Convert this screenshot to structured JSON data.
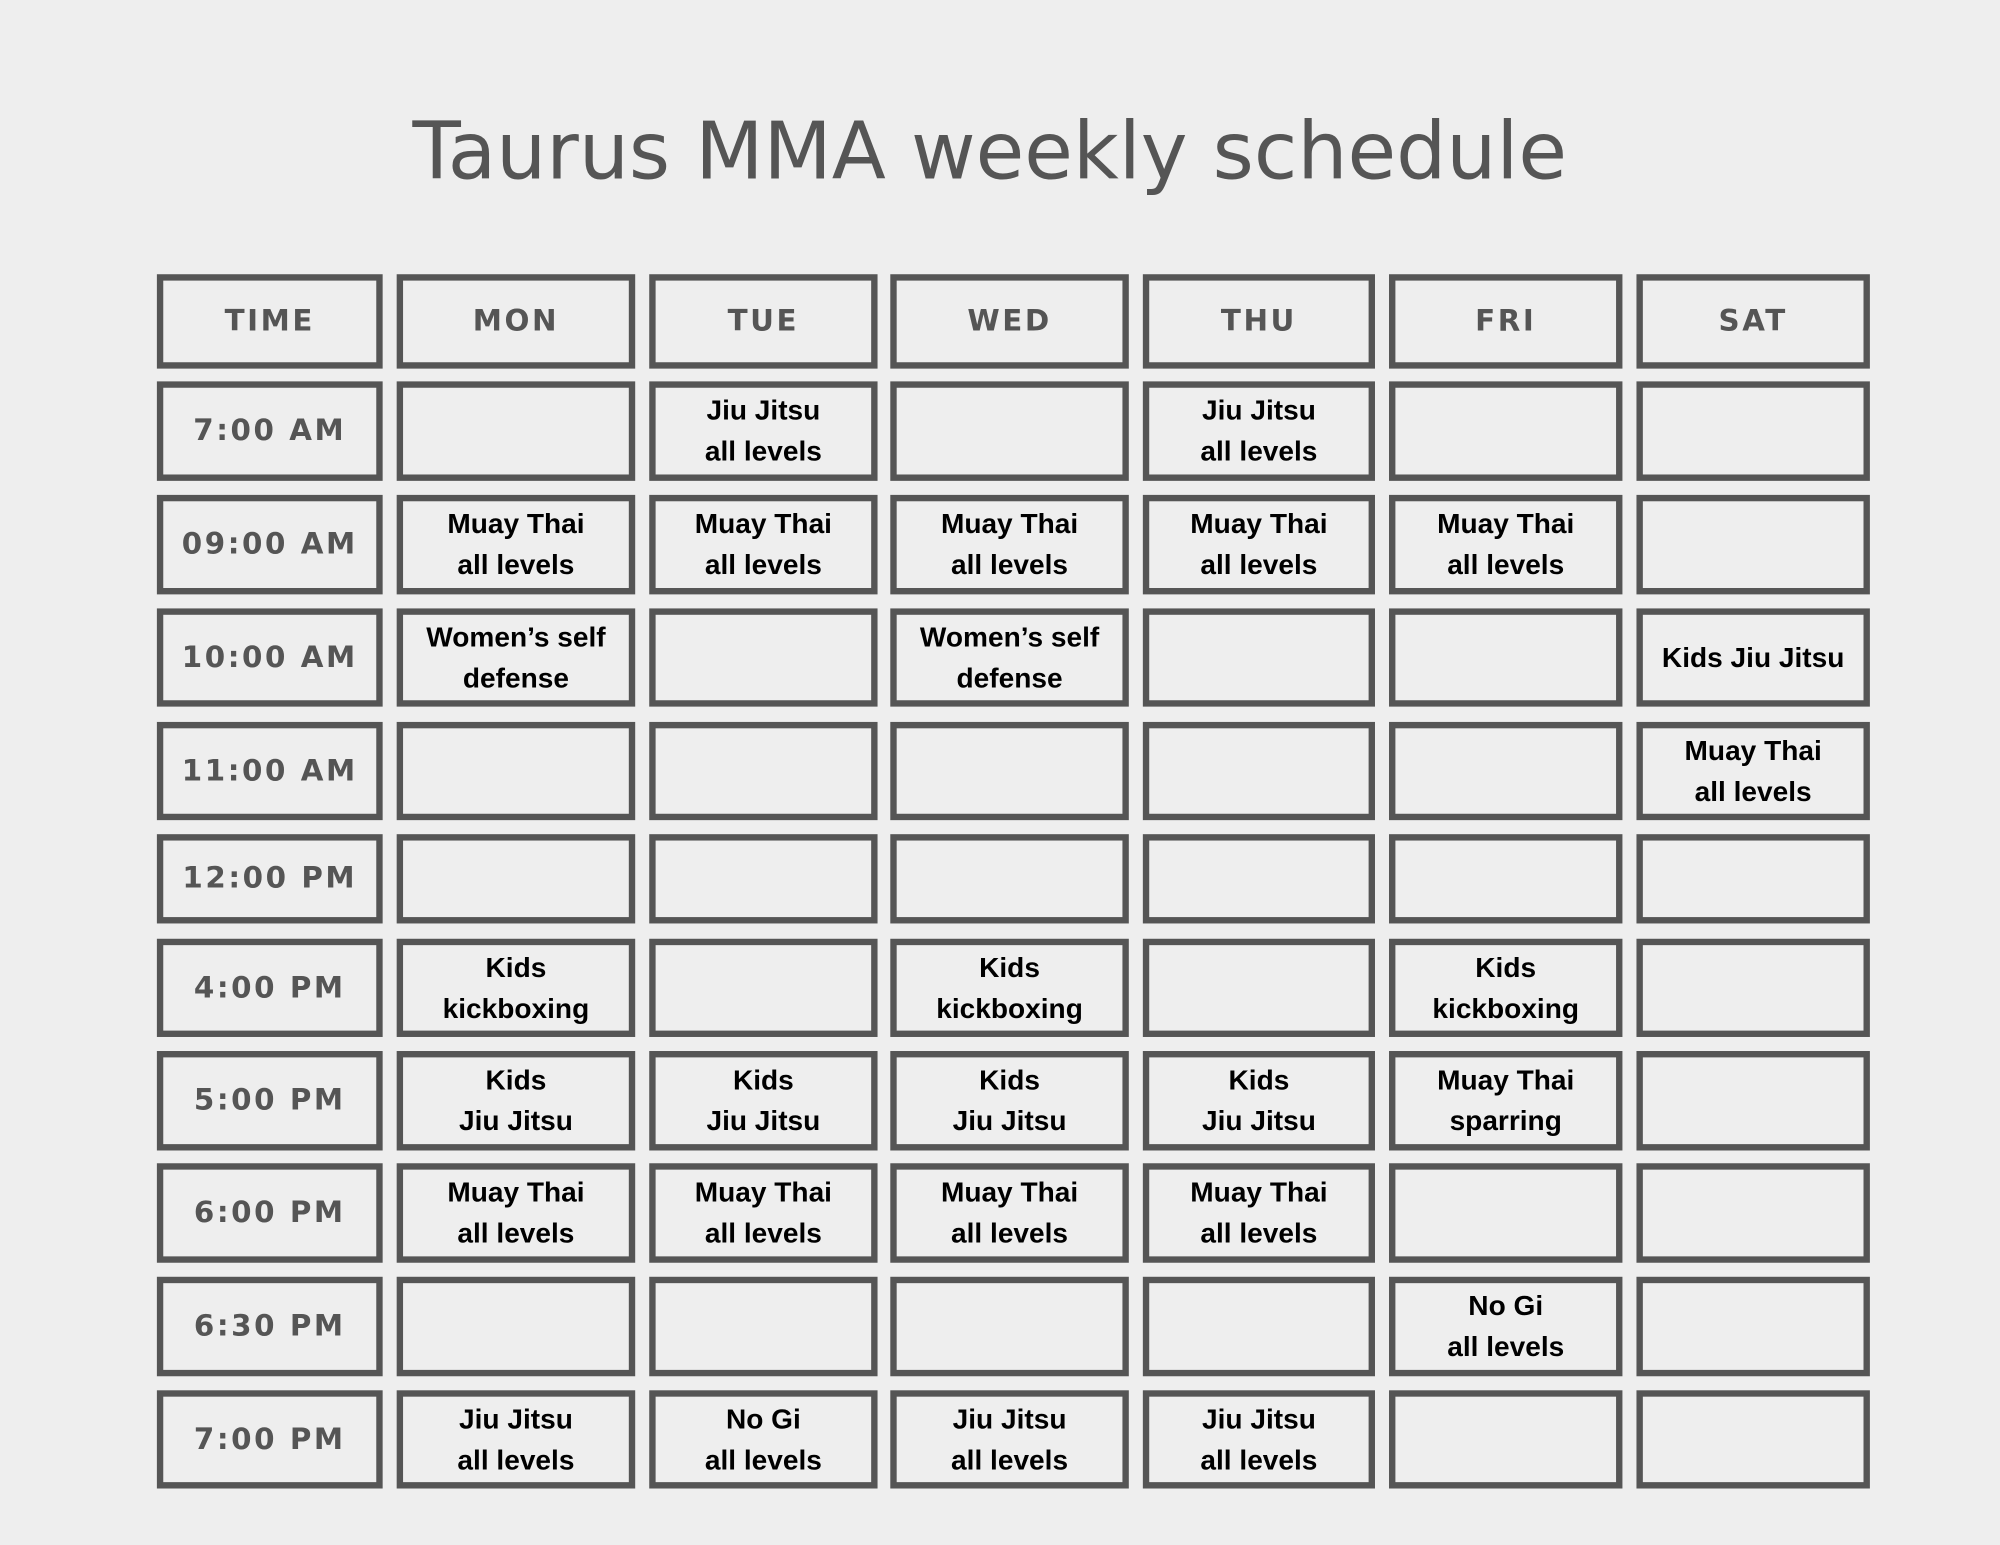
{
  "title": "Taurus MMA weekly schedule",
  "headers": [
    "TIME",
    "MON",
    "TUE",
    "WED",
    "THU",
    "FRI",
    "SAT"
  ],
  "rows": [
    {
      "time": "7:00 AM",
      "classes": [
        "",
        "Jiu Jitsu\nall levels",
        "",
        "Jiu Jitsu\nall levels",
        "",
        ""
      ]
    },
    {
      "time": "09:00 AM",
      "classes": [
        "Muay Thai\nall levels",
        "Muay Thai\nall levels",
        "Muay Thai\nall levels",
        "Muay Thai\nall levels",
        "Muay Thai\nall levels",
        ""
      ]
    },
    {
      "time": "10:00 AM",
      "classes": [
        "Women’s self\ndefense",
        "",
        "Women’s self\ndefense",
        "",
        "",
        "Kids Jiu Jitsu"
      ]
    },
    {
      "time": "11:00 AM",
      "classes": [
        "",
        "",
        "",
        "",
        "",
        "Muay Thai\nall levels"
      ]
    },
    {
      "time": "12:00 PM",
      "classes": [
        "",
        "",
        "",
        "",
        "",
        ""
      ]
    },
    {
      "time": "4:00 PM",
      "classes": [
        "Kids\nkickboxing",
        "",
        "Kids\nkickboxing",
        "",
        "Kids\nkickboxing",
        ""
      ]
    },
    {
      "time": "5:00 PM",
      "classes": [
        "Kids\nJiu Jitsu",
        "Kids\nJiu Jitsu",
        "Kids\nJiu Jitsu",
        "Kids\nJiu Jitsu",
        "Muay Thai\nsparring",
        ""
      ]
    },
    {
      "time": "6:00 PM",
      "classes": [
        "Muay Thai\nall levels",
        "Muay Thai\nall levels",
        "Muay Thai\nall levels",
        "Muay Thai\nall levels",
        "",
        ""
      ]
    },
    {
      "time": "6:30 PM",
      "classes": [
        "",
        "",
        "",
        "",
        "No Gi\nall levels",
        ""
      ]
    },
    {
      "time": "7:00 PM",
      "classes": [
        "Jiu Jitsu\nall levels",
        "No Gi\nall levels",
        "Jiu Jitsu\nall levels",
        "Jiu Jitsu\nall levels",
        "",
        ""
      ]
    }
  ],
  "colors": {
    "background": "#eeeeee",
    "border": "#555555",
    "header_text": "#555555",
    "class_text": "#000000"
  }
}
